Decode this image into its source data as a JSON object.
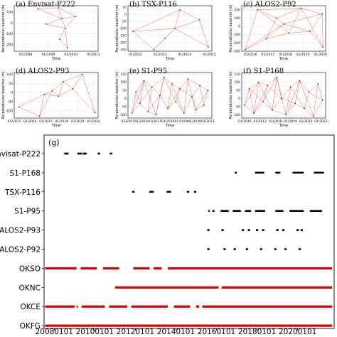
{
  "panels": [
    {
      "id": "a",
      "title": "(a) Envisat-P222",
      "type": "line",
      "ylabel": "Perpendicular baseline (m)",
      "xlabel": "Time",
      "xrange": [
        2007.5,
        2011.2
      ],
      "xticks": [
        {
          "v": 2008,
          "l": "01/2008"
        },
        {
          "v": 2009,
          "l": "01/2009"
        },
        {
          "v": 2010,
          "l": "01/2010"
        },
        {
          "v": 2011,
          "l": "01/2011"
        }
      ],
      "yrange": [
        -260,
        160
      ],
      "yticks": [
        -200,
        -100,
        0,
        100
      ],
      "points": [
        [
          2008.55,
          130
        ],
        [
          2009.45,
          140
        ],
        [
          2009.6,
          40
        ],
        [
          2009.75,
          -50
        ],
        [
          2009.5,
          -150
        ],
        [
          2010.2,
          60
        ],
        [
          2009.85,
          -230
        ],
        [
          2008.9,
          -10
        ]
      ],
      "edges": [
        [
          0,
          1
        ],
        [
          0,
          2
        ],
        [
          1,
          2
        ],
        [
          2,
          3
        ],
        [
          3,
          4
        ],
        [
          2,
          5
        ],
        [
          3,
          5
        ],
        [
          4,
          6
        ],
        [
          3,
          6
        ],
        [
          7,
          2
        ],
        [
          7,
          3
        ],
        [
          1,
          5
        ]
      ]
    },
    {
      "id": "b",
      "title": "(b) TSX-P116",
      "type": "line",
      "ylabel": "Perpendicular baseline (m)",
      "xlabel": "Time",
      "xrange": [
        2011.7,
        2015.1
      ],
      "xticks": [
        {
          "v": 2012,
          "l": "01/2012"
        },
        {
          "v": 2013,
          "l": "01/2013"
        },
        {
          "v": 2014,
          "l": "01/2014"
        },
        {
          "v": 2015,
          "l": "01/2015"
        }
      ],
      "yrange": [
        -260,
        60
      ],
      "yticks": [
        -250,
        -200,
        -150,
        -100,
        -50,
        0,
        50
      ],
      "points": [
        [
          2011.9,
          -120
        ],
        [
          2012.75,
          -250
        ],
        [
          2013.6,
          -100
        ],
        [
          2013.8,
          30
        ],
        [
          2014.6,
          -40
        ],
        [
          2014.95,
          -230
        ],
        [
          2013.2,
          -170
        ]
      ],
      "edges": [
        [
          0,
          1
        ],
        [
          0,
          2
        ],
        [
          1,
          2
        ],
        [
          2,
          3
        ],
        [
          2,
          4
        ],
        [
          3,
          4
        ],
        [
          4,
          5
        ],
        [
          2,
          5
        ],
        [
          1,
          6
        ],
        [
          6,
          2
        ],
        [
          0,
          3
        ]
      ]
    },
    {
      "id": "c",
      "title": "(c) ALOS2-P92",
      "type": "line",
      "ylabel": "Perpendicular baseline (m)",
      "xlabel": "Time",
      "xrange": [
        2015.5,
        2020.3
      ],
      "xticks": [
        {
          "v": 2016,
          "l": "01/2016"
        },
        {
          "v": 2017,
          "l": "01/2017"
        },
        {
          "v": 2018,
          "l": "01/2018"
        },
        {
          "v": 2019,
          "l": "01/2019"
        },
        {
          "v": 2020,
          "l": "01/2020"
        }
      ],
      "yrange": [
        -300,
        250
      ],
      "yticks": [
        -300,
        -200,
        -100,
        0,
        100,
        200
      ],
      "points": [
        [
          2015.7,
          -280
        ],
        [
          2016.4,
          200
        ],
        [
          2016.9,
          -150
        ],
        [
          2017.5,
          100
        ],
        [
          2018.2,
          -80
        ],
        [
          2018.9,
          220
        ],
        [
          2019.4,
          -60
        ],
        [
          2020.1,
          150
        ],
        [
          2020.15,
          -250
        ],
        [
          2017.9,
          30
        ]
      ],
      "edges": [
        [
          0,
          1
        ],
        [
          0,
          2
        ],
        [
          1,
          3
        ],
        [
          2,
          3
        ],
        [
          2,
          4
        ],
        [
          3,
          5
        ],
        [
          4,
          5
        ],
        [
          4,
          6
        ],
        [
          5,
          7
        ],
        [
          6,
          7
        ],
        [
          6,
          8
        ],
        [
          7,
          8
        ],
        [
          1,
          5
        ],
        [
          2,
          9
        ],
        [
          9,
          6
        ],
        [
          3,
          9
        ],
        [
          9,
          7
        ],
        [
          0,
          9
        ],
        [
          1,
          4
        ],
        [
          5,
          8
        ]
      ]
    },
    {
      "id": "d",
      "title": "(d) ALOS2-P93",
      "type": "line",
      "ylabel": "Perpendicular baseline (m)",
      "xlabel": "Time",
      "xrange": [
        2015,
        2020.3
      ],
      "xticks": [
        {
          "v": 2015,
          "l": "01/2015"
        },
        {
          "v": 2016,
          "l": "01/2016"
        },
        {
          "v": 2017,
          "l": "01/2017"
        },
        {
          "v": 2018,
          "l": "01/2018"
        },
        {
          "v": 2019,
          "l": "01/2019"
        },
        {
          "v": 2020,
          "l": "01/2020"
        }
      ],
      "yrange": [
        -140,
        110
      ],
      "yticks": [
        -100,
        -50,
        0,
        50,
        100
      ],
      "points": [
        [
          2015.3,
          -80
        ],
        [
          2016.6,
          -130
        ],
        [
          2016.9,
          -10
        ],
        [
          2017.4,
          10
        ],
        [
          2017.8,
          -20
        ],
        [
          2018.1,
          60
        ],
        [
          2018.7,
          20
        ],
        [
          2019.3,
          100
        ],
        [
          2020.1,
          -110
        ]
      ],
      "edges": [
        [
          0,
          1
        ],
        [
          0,
          2
        ],
        [
          1,
          2
        ],
        [
          2,
          3
        ],
        [
          3,
          4
        ],
        [
          4,
          5
        ],
        [
          5,
          6
        ],
        [
          6,
          7
        ],
        [
          7,
          8
        ],
        [
          3,
          5
        ],
        [
          4,
          6
        ],
        [
          2,
          4
        ],
        [
          6,
          8
        ],
        [
          5,
          7
        ],
        [
          1,
          3
        ]
      ]
    },
    {
      "id": "e",
      "title": "(e) S1-P95",
      "type": "line",
      "ylabel": "Perpendicular baseline (m)",
      "xlabel": "Time",
      "xrange": [
        2015,
        2021.3
      ],
      "xticks": [
        {
          "v": 2015,
          "l": "01/2015"
        },
        {
          "v": 2016,
          "l": "01/2016"
        },
        {
          "v": 2017,
          "l": "01/2017"
        },
        {
          "v": 2018,
          "l": "01/2018"
        },
        {
          "v": 2019,
          "l": "01/2019"
        },
        {
          "v": 2020,
          "l": "01/2020"
        },
        {
          "v": 2021,
          "l": "01/2021"
        }
      ],
      "yrange": [
        -120,
        160
      ],
      "yticks": [
        -100,
        -50,
        0,
        50,
        100,
        150
      ],
      "points": [
        [
          2015.3,
          -90
        ],
        [
          2015.6,
          40
        ],
        [
          2015.9,
          -30
        ],
        [
          2016.2,
          110
        ],
        [
          2016.5,
          -80
        ],
        [
          2016.8,
          70
        ],
        [
          2017.1,
          -100
        ],
        [
          2017.4,
          20
        ],
        [
          2017.7,
          130
        ],
        [
          2018.0,
          -60
        ],
        [
          2018.3,
          90
        ],
        [
          2018.6,
          -20
        ],
        [
          2018.9,
          60
        ],
        [
          2019.2,
          -90
        ],
        [
          2019.5,
          120
        ],
        [
          2019.8,
          10
        ],
        [
          2020.1,
          -70
        ],
        [
          2020.4,
          80
        ],
        [
          2020.7,
          -40
        ],
        [
          2021.0,
          50
        ]
      ],
      "edges": [
        [
          0,
          1
        ],
        [
          0,
          2
        ],
        [
          1,
          2
        ],
        [
          1,
          3
        ],
        [
          2,
          3
        ],
        [
          2,
          4
        ],
        [
          3,
          5
        ],
        [
          4,
          5
        ],
        [
          4,
          6
        ],
        [
          5,
          7
        ],
        [
          6,
          7
        ],
        [
          6,
          8
        ],
        [
          7,
          8
        ],
        [
          7,
          9
        ],
        [
          8,
          10
        ],
        [
          9,
          10
        ],
        [
          9,
          11
        ],
        [
          10,
          12
        ],
        [
          11,
          12
        ],
        [
          11,
          13
        ],
        [
          12,
          14
        ],
        [
          13,
          14
        ],
        [
          13,
          15
        ],
        [
          14,
          16
        ],
        [
          15,
          16
        ],
        [
          15,
          17
        ],
        [
          16,
          18
        ],
        [
          17,
          18
        ],
        [
          17,
          19
        ],
        [
          18,
          19
        ],
        [
          0,
          3
        ],
        [
          3,
          6
        ],
        [
          5,
          8
        ],
        [
          8,
          11
        ],
        [
          10,
          13
        ],
        [
          12,
          15
        ],
        [
          14,
          17
        ],
        [
          16,
          19
        ],
        [
          2,
          5
        ],
        [
          4,
          7
        ],
        [
          9,
          12
        ]
      ]
    },
    {
      "id": "f",
      "title": "(f) S1-P168",
      "type": "line",
      "ylabel": "Perpendicular baseline (m)",
      "xlabel": "Time",
      "xrange": [
        2015.8,
        2021.3
      ],
      "xticks": [
        {
          "v": 2016,
          "l": "01/2016"
        },
        {
          "v": 2017,
          "l": "01/2017"
        },
        {
          "v": 2018,
          "l": "01/2018"
        },
        {
          "v": 2019,
          "l": "01/2019"
        },
        {
          "v": 2020,
          "l": "01/2020"
        },
        {
          "v": 2021,
          "l": "01/2021"
        }
      ],
      "yrange": [
        -120,
        160
      ],
      "yticks": [
        -100,
        -50,
        0,
        50,
        100,
        150
      ],
      "points": [
        [
          2016.0,
          -40
        ],
        [
          2016.3,
          60
        ],
        [
          2016.6,
          -90
        ],
        [
          2016.9,
          100
        ],
        [
          2017.2,
          -20
        ],
        [
          2017.5,
          80
        ],
        [
          2017.8,
          -70
        ],
        [
          2018.1,
          130
        ],
        [
          2018.4,
          0
        ],
        [
          2018.7,
          -100
        ],
        [
          2019.0,
          70
        ],
        [
          2019.3,
          -30
        ],
        [
          2019.6,
          110
        ],
        [
          2019.9,
          -60
        ],
        [
          2020.2,
          40
        ],
        [
          2020.5,
          -110
        ],
        [
          2020.8,
          90
        ],
        [
          2021.1,
          -10
        ]
      ],
      "edges": [
        [
          0,
          1
        ],
        [
          0,
          2
        ],
        [
          1,
          2
        ],
        [
          1,
          3
        ],
        [
          2,
          3
        ],
        [
          2,
          4
        ],
        [
          3,
          5
        ],
        [
          4,
          5
        ],
        [
          4,
          6
        ],
        [
          5,
          7
        ],
        [
          6,
          7
        ],
        [
          6,
          8
        ],
        [
          7,
          8
        ],
        [
          7,
          9
        ],
        [
          8,
          10
        ],
        [
          9,
          10
        ],
        [
          9,
          11
        ],
        [
          10,
          12
        ],
        [
          11,
          12
        ],
        [
          11,
          13
        ],
        [
          12,
          14
        ],
        [
          13,
          14
        ],
        [
          13,
          15
        ],
        [
          14,
          16
        ],
        [
          15,
          16
        ],
        [
          15,
          17
        ],
        [
          16,
          17
        ],
        [
          0,
          3
        ],
        [
          3,
          6
        ],
        [
          5,
          8
        ],
        [
          8,
          11
        ],
        [
          10,
          13
        ],
        [
          12,
          15
        ],
        [
          14,
          17
        ],
        [
          2,
          5
        ],
        [
          4,
          7
        ],
        [
          9,
          12
        ],
        [
          1,
          4
        ],
        [
          6,
          9
        ]
      ]
    }
  ],
  "chart_data": {
    "title": "(g)",
    "type": "timeline",
    "xrange": [
      2007.5,
      2021.8
    ],
    "xticks": [
      {
        "v": 2008,
        "l": "20080101"
      },
      {
        "v": 2010,
        "l": "20100101"
      },
      {
        "v": 2012,
        "l": "20120101"
      },
      {
        "v": 2014,
        "l": "20140101"
      },
      {
        "v": 2016,
        "l": "20160101"
      },
      {
        "v": 2018,
        "l": "20180101"
      },
      {
        "v": 2020,
        "l": "20200101"
      }
    ],
    "rows": [
      {
        "label": "Envisat-P222",
        "color": "#000000",
        "kind": "points",
        "dates": [
          2008.55,
          2008.65,
          2009.2,
          2009.3,
          2009.45,
          2009.55,
          2010.2,
          2010.8
        ]
      },
      {
        "label": "S1-P168",
        "color": "#000000",
        "kind": "segments",
        "segments": [
          [
            2016.9,
            2017.0
          ],
          [
            2017.9,
            2018.35
          ],
          [
            2018.9,
            2019.15
          ],
          [
            2019.75,
            2020.3
          ],
          [
            2020.8,
            2021.3
          ]
        ]
      },
      {
        "label": "TSX-P116",
        "color": "#000000",
        "kind": "points",
        "dates": [
          2011.9,
          2012.75,
          2012.85,
          2013.6,
          2013.7,
          2014.6,
          2014.95
        ]
      },
      {
        "label": "S1-P95",
        "color": "#000000",
        "kind": "segments",
        "segments": [
          [
            2015.6,
            2015.65
          ],
          [
            2015.8,
            2015.9
          ],
          [
            2016.2,
            2016.6
          ],
          [
            2016.8,
            2017.2
          ],
          [
            2017.4,
            2017.7
          ],
          [
            2017.9,
            2018.4
          ],
          [
            2018.9,
            2019.3
          ],
          [
            2019.6,
            2020.3
          ],
          [
            2020.6,
            2021.2
          ]
        ]
      },
      {
        "label": "ALOS2-P93",
        "color": "#000000",
        "kind": "points",
        "dates": [
          2015.6,
          2016.3,
          2017.3,
          2017.6,
          2018.0,
          2018.3,
          2019.0,
          2019.3,
          2020.0,
          2020.2
        ]
      },
      {
        "label": "ALOS2-P92",
        "color": "#000000",
        "kind": "points",
        "dates": [
          2015.6,
          2016.4,
          2016.9,
          2017.5,
          2018.2,
          2018.9,
          2019.4,
          2020.1
        ]
      },
      {
        "label": "OKSO",
        "color": "#cc0000",
        "kind": "segments",
        "segments": [
          [
            2007.55,
            2009.1
          ],
          [
            2009.3,
            2010.1
          ],
          [
            2010.4,
            2011.2
          ],
          [
            2011.9,
            2012.7
          ],
          [
            2012.9,
            2013.3
          ],
          [
            2013.6,
            2021.7
          ]
        ]
      },
      {
        "label": "OKNC",
        "color": "#cc0000",
        "kind": "segments",
        "segments": [
          [
            2011.0,
            2016.1
          ],
          [
            2016.25,
            2021.7
          ]
        ]
      },
      {
        "label": "OKCE",
        "color": "#cc0000",
        "kind": "segments",
        "segments": [
          [
            2007.55,
            2009.0
          ],
          [
            2009.1,
            2009.15
          ],
          [
            2009.35,
            2010.5
          ],
          [
            2010.7,
            2011.6
          ],
          [
            2011.8,
            2013.6
          ],
          [
            2013.9,
            2014.7
          ],
          [
            2015.0,
            2015.15
          ],
          [
            2015.3,
            2021.7
          ]
        ]
      },
      {
        "label": "OKFG",
        "color": "#cc0000",
        "kind": "segments",
        "segments": [
          [
            2007.55,
            2021.7
          ]
        ]
      }
    ]
  }
}
